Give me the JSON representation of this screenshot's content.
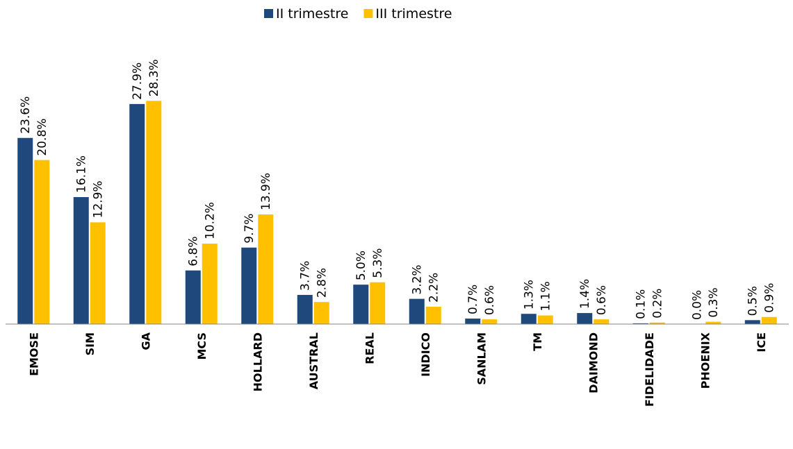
{
  "chart_data": {
    "type": "bar",
    "categories": [
      "EMOSE",
      "SIM",
      "GA",
      "MCS",
      "HOLLARD",
      "AUSTRAL",
      "REAL",
      "INDICO",
      "SANLAM",
      "TM",
      "DAIMOND",
      "FIDELIDADE",
      "PHOENIX",
      "ICE"
    ],
    "series": [
      {
        "name": "II trimestre",
        "color": "#1f497d",
        "values": [
          23.6,
          16.1,
          27.9,
          6.8,
          9.7,
          3.7,
          5.0,
          3.2,
          0.7,
          1.3,
          1.4,
          0.1,
          0.0,
          0.5
        ],
        "value_labels": [
          "23.6%",
          "16.1%",
          "27.9%",
          "6.8%",
          "9.7%",
          "3.7%",
          "5.0%",
          "3.2%",
          "0.7%",
          "1.3%",
          "1.4%",
          "0.1%",
          "0.0%",
          "0.5%"
        ]
      },
      {
        "name": "III trimestre",
        "color": "#ffc000",
        "values": [
          20.8,
          12.9,
          28.3,
          10.2,
          13.9,
          2.8,
          5.3,
          2.2,
          0.6,
          1.1,
          0.6,
          0.2,
          0.3,
          0.9
        ],
        "value_labels": [
          "20.8%",
          "12.9%",
          "28.3%",
          "10.2%",
          "13.9%",
          "2.8%",
          "5.3%",
          "2.2%",
          "0.6%",
          "1.1%",
          "0.6%",
          "0.2%",
          "0.3%",
          "0.9%"
        ]
      }
    ],
    "ylim": [
      0,
      30
    ],
    "legend": "top"
  }
}
